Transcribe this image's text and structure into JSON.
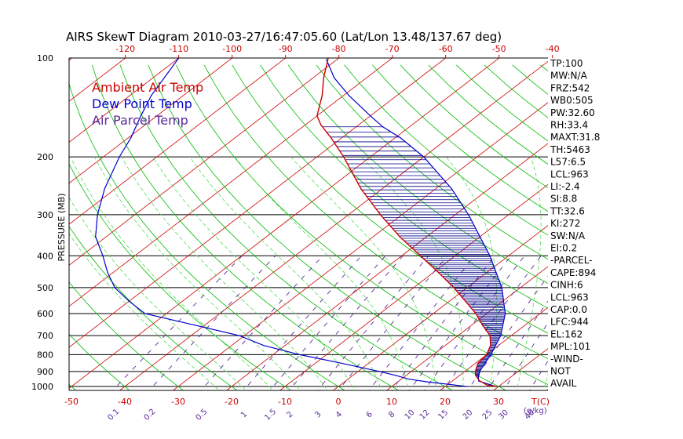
{
  "title": "AIRS SkewT Diagram 2010-03-27/16:47:05.60 (Lat/Lon 13.48/137.67 deg)",
  "colors": {
    "temperature": "#cc0000",
    "dewpoint": "#0000cc",
    "parcel": "#0000cc",
    "cape_hatch": "#000088",
    "isotherm": "#cc0000",
    "dry_adiabat": "#00bb00",
    "moist_adiabat": "#55dd55",
    "mixing_ratio": "#5a2a9a",
    "top_axis": "#cc0000",
    "bottom_axis": "#cc0000",
    "mixing_label": "#5a2a9a"
  },
  "legend": [
    {
      "label": "Ambient Air Temp",
      "color": "#cc0000"
    },
    {
      "label": "Dew Point Temp",
      "color": "#0000cc"
    },
    {
      "label": "Air Parcel Temp",
      "color": "#5a2a9a"
    }
  ],
  "ylabel": "PRESSURE (MB)",
  "pressure_ticks": [
    "100",
    "200",
    "300",
    "400",
    "500",
    "600",
    "700",
    "800",
    "900",
    "1000"
  ],
  "top_ticks": [
    "-120",
    "-110",
    "-100",
    "-90",
    "-80",
    "-70",
    "-60",
    "-50",
    "-40"
  ],
  "bottom_ticks": [
    "-50",
    "-40",
    "-30",
    "-20",
    "-10",
    "0",
    "10",
    "20",
    "30"
  ],
  "bottom_unit": "T(C)",
  "mixing_ticks": [
    "0.1",
    "0.2",
    "0.5",
    "1",
    "1.5",
    "2",
    "3",
    "4",
    "6",
    "8",
    "10",
    "12",
    "15",
    "20",
    "25",
    "30",
    "40"
  ],
  "mixing_unit": "(g/kg)",
  "stats": [
    "TP:100",
    "MW:N/A",
    "FRZ:542",
    "WB0:505",
    "PW:32.60",
    "RH:33.4",
    "MAXT:31.8",
    "TH:5463",
    "L57:6.5",
    "LCL:963",
    "LI:-2.4",
    "SI:8.8",
    "TT:32.6",
    "KI:272",
    "SW:N/A",
    "EI:0.2",
    "-PARCEL-",
    "CAPE:894",
    "CINH:6",
    "LCL:963",
    "CAP:0.0",
    "LFC:944",
    "EL:162",
    "MPL:101",
    "-WIND-",
    "NOT",
    "AVAIL"
  ],
  "chart_data": {
    "type": "line",
    "title": "AIRS SkewT Diagram 2010-03-27/16:47:05.60 (Lat/Lon 13.48/137.67 deg)",
    "ylabel": "PRESSURE (MB)",
    "xlabel": "T(C)",
    "pressure_range": [
      1000,
      100
    ],
    "y_scale": "log",
    "grid": true,
    "legend_position": "top-left",
    "series": [
      {
        "name": "Ambient Air Temp",
        "pressure": [
          1000,
          990,
          960,
          925,
          900,
          850,
          800,
          750,
          700,
          650,
          600,
          550,
          500,
          450,
          400,
          350,
          300,
          250,
          200,
          175,
          160,
          150,
          130,
          115,
          100
        ],
        "temperature": [
          29.5,
          27.5,
          25.0,
          23.0,
          22.0,
          20.5,
          20.0,
          18.5,
          16.0,
          12.0,
          8.0,
          3.0,
          -2.5,
          -9.0,
          -16.5,
          -25.0,
          -34.0,
          -44.0,
          -55.0,
          -62.0,
          -67.0,
          -70.0,
          -74.0,
          -78.0,
          -82.0
        ]
      },
      {
        "name": "Dew Point Temp",
        "pressure": [
          1000,
          990,
          970,
          950,
          925,
          900,
          850,
          800,
          750,
          700,
          650,
          600,
          550,
          500,
          450,
          400,
          350,
          300,
          250,
          200,
          175,
          150,
          130,
          100
        ],
        "temperature": [
          24.0,
          21.5,
          16.0,
          11.5,
          8.0,
          4.0,
          -5.0,
          -15.0,
          -24.0,
          -31.0,
          -42.0,
          -54.0,
          -60.0,
          -66.0,
          -71.0,
          -76.0,
          -82.0,
          -87.0,
          -92.0,
          -97.0,
          -99.5,
          -103.0,
          -106.0,
          -110.0
        ]
      },
      {
        "name": "Air Parcel Temp",
        "pressure": [
          1000,
          975,
          963,
          944,
          900,
          850,
          800,
          700,
          600,
          500,
          400,
          300,
          250,
          200,
          175,
          162,
          150,
          130,
          115,
          101
        ],
        "temperature": [
          29.5,
          26.5,
          25.0,
          24.2,
          22.8,
          21.8,
          20.8,
          18.0,
          13.5,
          6.5,
          -3.5,
          -17.5,
          -27.0,
          -40.0,
          -49.0,
          -55.0,
          -60.0,
          -69.0,
          -76.0,
          -82.0
        ]
      }
    ]
  }
}
